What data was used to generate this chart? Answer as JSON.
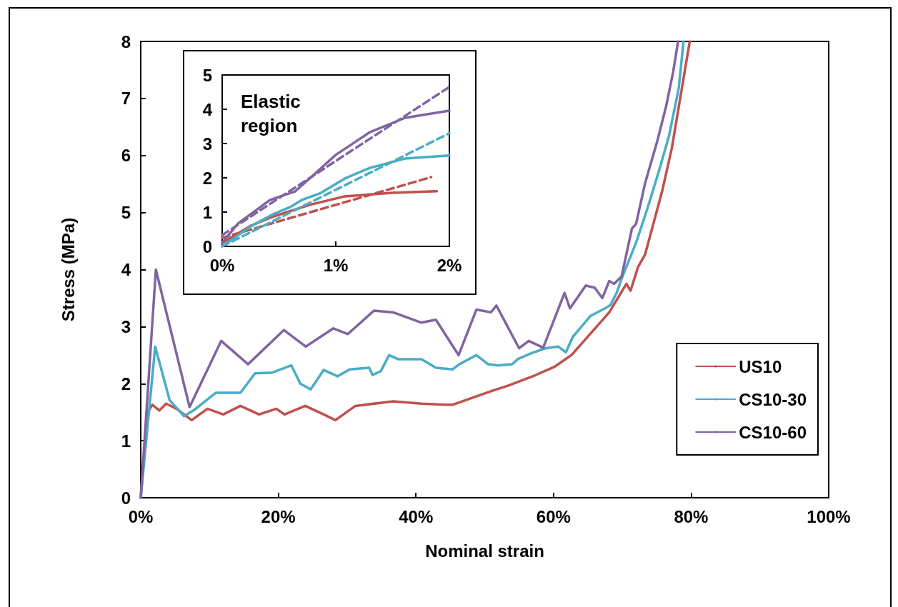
{
  "chart_data": [
    {
      "type": "line",
      "xlabel": "Nominal strain",
      "ylabel": "Stress (MPa)",
      "xlim": [
        0,
        100
      ],
      "xticks": [
        {
          "value": 0,
          "label": "0%"
        },
        {
          "value": 20,
          "label": "20%"
        },
        {
          "value": 40,
          "label": "40%"
        },
        {
          "value": 60,
          "label": "60%"
        },
        {
          "value": 80,
          "label": "80%"
        },
        {
          "value": 100,
          "label": "100%"
        }
      ],
      "ylim": [
        0,
        8
      ],
      "yticks": [
        0,
        1,
        2,
        3,
        4,
        5,
        6,
        7,
        8
      ],
      "grid": false,
      "legend": "bottom right",
      "marker": "none",
      "line_style": "solid",
      "series": [
        {
          "name": "US10",
          "color": "#c0504d",
          "x": [
            0,
            1.0,
            1.7,
            2.7,
            3.7,
            5.2,
            7.4,
            9.7,
            12.0,
            14.5,
            17.2,
            19.7,
            20.9,
            23.9,
            26.6,
            28.3,
            31.2,
            36.7,
            40.8,
            44.2,
            45.3,
            51.2,
            53.3,
            57.4,
            60.2,
            62.6,
            65.4,
            68.1,
            70.6,
            71.2,
            72.3,
            73.3,
            75.8,
            77.2,
            78.2,
            79.8
          ],
          "values": [
            0,
            1.5,
            1.63,
            1.53,
            1.65,
            1.56,
            1.36,
            1.56,
            1.46,
            1.61,
            1.46,
            1.56,
            1.46,
            1.61,
            1.46,
            1.36,
            1.61,
            1.69,
            1.65,
            1.63,
            1.63,
            1.88,
            1.96,
            2.15,
            2.3,
            2.5,
            2.88,
            3.25,
            3.75,
            3.63,
            4.05,
            4.26,
            5.38,
            6.13,
            6.85,
            8.0
          ]
        },
        {
          "name": "CS10-30",
          "color": "#4bacc6",
          "x": [
            0,
            2.1,
            4.2,
            6.3,
            7.9,
            10.9,
            14.5,
            16.6,
            19.0,
            21.9,
            23.2,
            24.7,
            26.6,
            28.6,
            30.4,
            33.2,
            33.7,
            34.9,
            36.1,
            37.4,
            40.8,
            42.9,
            45.3,
            46.3,
            48.8,
            50.5,
            51.9,
            54.0,
            54.8,
            56.7,
            58.8,
            60.7,
            61.8,
            62.8,
            64.0,
            65.4,
            67.5,
            68.3,
            69.2,
            69.9,
            72.0,
            73.7,
            75.4,
            76.8,
            78.2,
            78.9
          ],
          "values": [
            0,
            2.65,
            1.71,
            1.43,
            1.55,
            1.84,
            1.84,
            2.18,
            2.19,
            2.32,
            2.0,
            1.9,
            2.24,
            2.13,
            2.25,
            2.28,
            2.15,
            2.22,
            2.5,
            2.43,
            2.43,
            2.28,
            2.25,
            2.34,
            2.5,
            2.34,
            2.32,
            2.34,
            2.43,
            2.53,
            2.62,
            2.65,
            2.55,
            2.82,
            2.99,
            3.19,
            3.32,
            3.38,
            3.6,
            3.84,
            4.47,
            5.09,
            5.76,
            6.35,
            7.18,
            8.0
          ]
        },
        {
          "name": "CS10-60",
          "color": "#8064a2",
          "x": [
            0,
            2.2,
            7.1,
            11.7,
            15.6,
            20.8,
            24.0,
            28.0,
            30.1,
            33.9,
            36.7,
            40.8,
            42.9,
            46.2,
            48.8,
            50.9,
            51.7,
            55.0,
            56.4,
            58.5,
            61.6,
            62.4,
            64.7,
            66.0,
            67.1,
            68.1,
            68.8,
            69.9,
            71.4,
            72.0,
            73.3,
            75.1,
            76.4,
            77.4,
            78.1
          ],
          "values": [
            0,
            4.0,
            1.59,
            2.75,
            2.34,
            2.94,
            2.65,
            2.97,
            2.87,
            3.28,
            3.25,
            3.07,
            3.12,
            2.5,
            3.3,
            3.25,
            3.37,
            2.62,
            2.75,
            2.63,
            3.59,
            3.32,
            3.72,
            3.68,
            3.5,
            3.8,
            3.75,
            3.88,
            4.72,
            4.8,
            5.51,
            6.26,
            6.88,
            7.47,
            8.0
          ]
        }
      ]
    },
    {
      "type": "line",
      "annotations": [
        "Elastic region"
      ],
      "xlim": [
        0,
        2
      ],
      "xticks": [
        {
          "value": 0,
          "label": "0%"
        },
        {
          "value": 1,
          "label": "1%"
        },
        {
          "value": 2,
          "label": "2%"
        }
      ],
      "ylim": [
        0,
        5
      ],
      "yticks": [
        0,
        1,
        2,
        3,
        4,
        5
      ],
      "grid": false,
      "legend": false,
      "marker": "none",
      "series": [
        {
          "color": "#c0504d",
          "line_style": "solid",
          "x": [
            0,
            0.25,
            0.45,
            0.77,
            1.08,
            1.5,
            1.89
          ],
          "values": [
            0.1,
            0.6,
            0.87,
            1.21,
            1.46,
            1.56,
            1.61
          ]
        },
        {
          "color": "#c0504d",
          "line_style": "dashed",
          "x": [
            0,
            1.84
          ],
          "values": [
            0.25,
            2.02
          ]
        },
        {
          "color": "#4bacc6",
          "line_style": "solid",
          "x": [
            0,
            0.25,
            0.45,
            0.6,
            0.7,
            0.87,
            1.08,
            1.3,
            1.61,
            2.0
          ],
          "values": [
            0,
            0.58,
            0.94,
            1.15,
            1.35,
            1.56,
            1.98,
            2.29,
            2.56,
            2.65
          ]
        },
        {
          "color": "#4bacc6",
          "line_style": "dashed",
          "x": [
            0,
            2.0
          ],
          "values": [
            0,
            3.3
          ]
        },
        {
          "color": "#8064a2",
          "line_style": "solid",
          "x": [
            0,
            0.14,
            0.42,
            0.64,
            0.79,
            1.0,
            1.3,
            1.61,
            2.0
          ],
          "values": [
            0.1,
            0.67,
            1.35,
            1.6,
            2.04,
            2.67,
            3.33,
            3.75,
            3.96
          ]
        },
        {
          "color": "#8064a2",
          "line_style": "dashed",
          "x": [
            0,
            2.0
          ],
          "values": [
            0.33,
            4.65
          ]
        }
      ]
    }
  ]
}
